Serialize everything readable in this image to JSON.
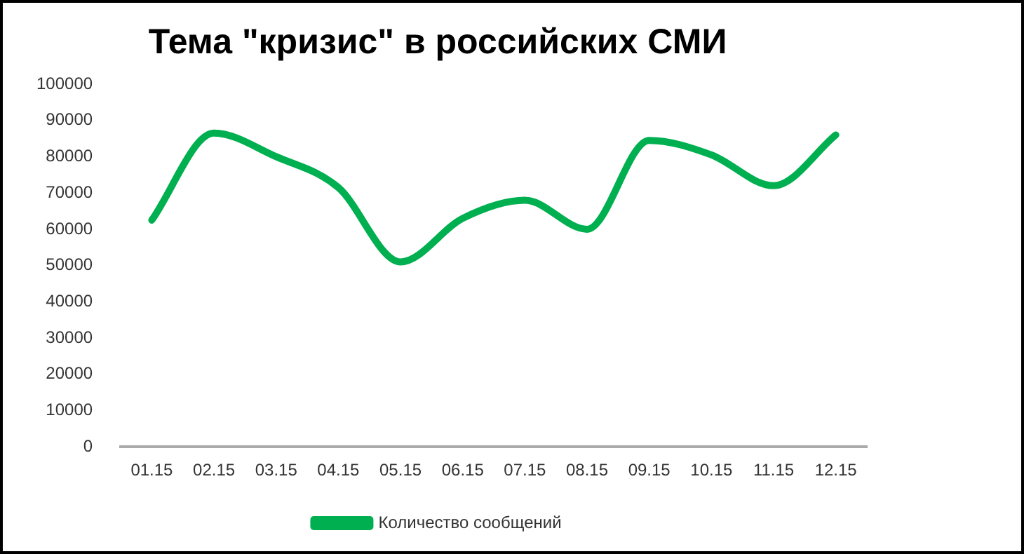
{
  "chart_data": {
    "type": "line",
    "title": "Тема \"кризис\" в российских СМИ",
    "categories": [
      "01.15",
      "02.15",
      "03.15",
      "04.15",
      "05.15",
      "06.15",
      "07.15",
      "08.15",
      "09.15",
      "10.15",
      "11.15",
      "12.15"
    ],
    "series": [
      {
        "name": "Количество сообщений",
        "color": "#00b050",
        "values": [
          62500,
          86500,
          80000,
          71500,
          51000,
          63000,
          68000,
          60000,
          84500,
          80500,
          72000,
          86000
        ]
      }
    ],
    "ylim": [
      0,
      100000
    ],
    "yticks": [
      0,
      10000,
      20000,
      30000,
      40000,
      50000,
      60000,
      70000,
      80000,
      90000,
      100000
    ],
    "grid": false,
    "legend": "bottom",
    "marker": "none",
    "line_style": "solid"
  }
}
